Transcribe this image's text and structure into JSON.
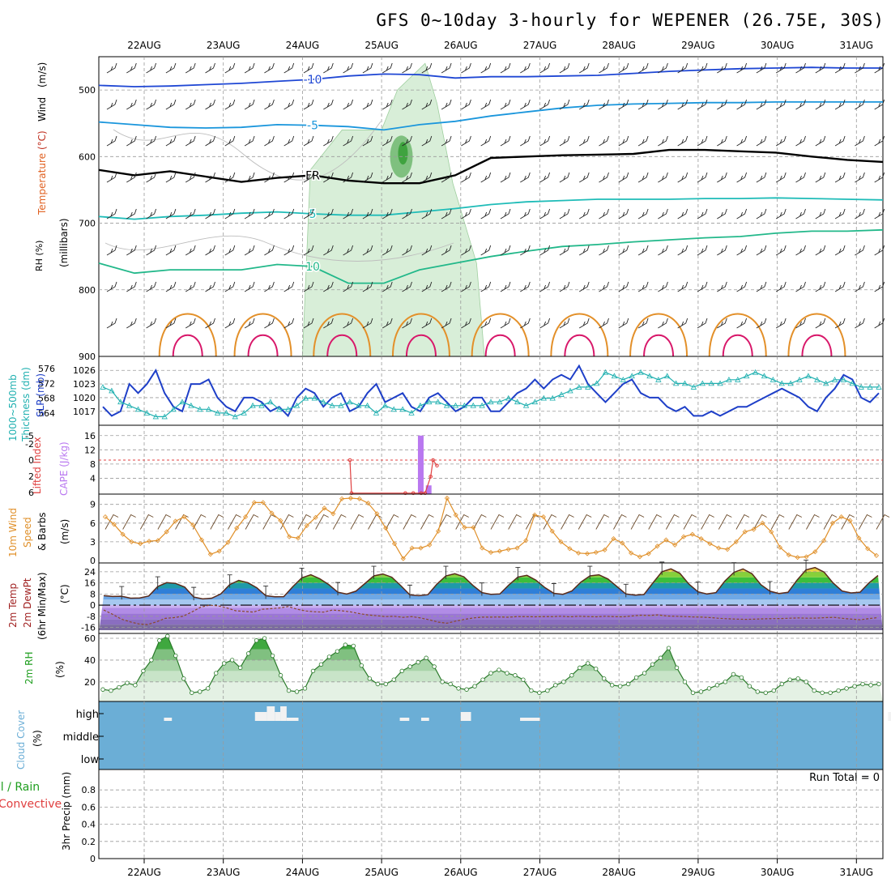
{
  "title": "GFS 0~10day 3-hourly for WEPENER (26.75E, 30S)",
  "dates": [
    "22AUG",
    "23AUG",
    "24AUG",
    "25AUG",
    "26AUG",
    "27AUG",
    "28AUG",
    "29AUG",
    "30AUG",
    "31AUG"
  ],
  "colors": {
    "grid": "#9a9a9a",
    "blue": "#1e3fc8",
    "teal": "#22aeb0",
    "orange": "#e08a1a",
    "red": "#e04040",
    "purple": "#b978f0",
    "green": "#1f9e1f",
    "cloud": "#6baed6",
    "rhgreen": "#7fc07f"
  },
  "chart_data": [
    {
      "id": "upper_air",
      "type": "contour",
      "ylabel_parts": [
        "RH (%)",
        "Temperature",
        "(°C)",
        "Wind",
        "(m/s)"
      ],
      "yunit": "(millibars)",
      "yticks": [
        500,
        600,
        700,
        800,
        900
      ],
      "ylim": [
        900,
        450
      ],
      "contours": [
        {
          "level": "-10",
          "color": "#1f47d4",
          "values": [
            493,
            495,
            494,
            492,
            490,
            487,
            484,
            479,
            476,
            477,
            482,
            480,
            480,
            479,
            478,
            475,
            472,
            470,
            468,
            467,
            466,
            467,
            467
          ]
        },
        {
          "level": "-5",
          "color": "#1a96dc",
          "values": [
            548,
            552,
            556,
            557,
            556,
            552,
            553,
            555,
            560,
            552,
            547,
            539,
            533,
            527,
            523,
            521,
            520,
            519,
            519,
            518,
            518,
            518,
            518
          ]
        },
        {
          "level": "FR",
          "color": "#000000",
          "values": [
            620,
            628,
            622,
            630,
            638,
            632,
            628,
            636,
            640,
            640,
            628,
            602,
            600,
            598,
            597,
            596,
            590,
            590,
            592,
            594,
            600,
            605,
            608
          ]
        },
        {
          "level": "5",
          "color": "#1fbcb8",
          "values": [
            690,
            694,
            690,
            688,
            685,
            683,
            686,
            688,
            688,
            683,
            678,
            672,
            668,
            666,
            664,
            664,
            664,
            663,
            663,
            662,
            663,
            664,
            665
          ]
        },
        {
          "level": "10",
          "color": "#22b88a",
          "values": [
            760,
            775,
            770,
            770,
            770,
            762,
            765,
            790,
            790,
            770,
            760,
            750,
            742,
            735,
            732,
            728,
            725,
            722,
            720,
            715,
            712,
            712,
            710
          ]
        }
      ],
      "contour_labels": [
        "-10",
        "-5",
        "FR",
        "5",
        "10"
      ]
    },
    {
      "id": "thickness_slp",
      "type": "line",
      "ylabel_parts": [
        "1000~500mb",
        "Thickness (dm)",
        "SLP (mb)"
      ],
      "left_ticks": [
        "576",
        "572",
        "568",
        "564"
      ],
      "left_range": [
        562,
        578
      ],
      "right_ticks": [
        "1026",
        "1023",
        "1020",
        "1017"
      ],
      "right_range": [
        1015,
        1028
      ],
      "series": [
        {
          "name": "SLP (mb)",
          "color": "#1e3fc8",
          "values": [
            1018,
            1016,
            1017,
            1023,
            1021,
            1023,
            1026,
            1021,
            1018,
            1017,
            1023,
            1023,
            1024,
            1020,
            1018,
            1017,
            1020,
            1020,
            1019,
            1017,
            1018,
            1016,
            1020,
            1022,
            1021,
            1018,
            1020,
            1021,
            1017,
            1018,
            1021,
            1023,
            1019,
            1020,
            1021,
            1018,
            1017,
            1020,
            1021,
            1019,
            1017,
            1018,
            1020,
            1020,
            1017,
            1017,
            1019,
            1021,
            1022,
            1024,
            1022,
            1024,
            1025,
            1024,
            1027,
            1023,
            1021,
            1019,
            1021,
            1023,
            1024,
            1021,
            1020,
            1020,
            1018,
            1017,
            1018,
            1016,
            1016,
            1017,
            1016,
            1017,
            1018,
            1018,
            1019,
            1020,
            1021,
            1022,
            1021,
            1020,
            1018,
            1017,
            1020,
            1022,
            1025,
            1024,
            1020,
            1019,
            1021
          ]
        },
        {
          "name": "1000~500mb Thickness (dm)",
          "color": "#20b0b0",
          "values": [
            571,
            570,
            567,
            566,
            565,
            564,
            563,
            563,
            565,
            567,
            566,
            565,
            565,
            564,
            564,
            563,
            564,
            566,
            566,
            567,
            565,
            565,
            566,
            568,
            568,
            567,
            566,
            566,
            567,
            566,
            566,
            564,
            566,
            565,
            565,
            564,
            566,
            567,
            567,
            566,
            566,
            566,
            566,
            566,
            567,
            567,
            568,
            567,
            566,
            567,
            568,
            568,
            569,
            570,
            571,
            571,
            572,
            575,
            574,
            573,
            574,
            575,
            574,
            573,
            574,
            572,
            572,
            571,
            572,
            572,
            572,
            573,
            573,
            574,
            575,
            574,
            573,
            572,
            572,
            573,
            574,
            573,
            572,
            573,
            573,
            572,
            571,
            571,
            571
          ]
        }
      ]
    },
    {
      "id": "cape_li",
      "type": "bar",
      "ylabel_parts": [
        "Lifted Index",
        "CAPE (J/kg)"
      ],
      "li_ticks": [
        "-5",
        "-2",
        "0",
        "2",
        "6"
      ],
      "cape_ticks": [
        "16",
        "12",
        "8",
        "4"
      ],
      "cape_range": [
        0,
        18
      ],
      "cape_values": [
        0,
        0,
        0,
        0,
        0,
        0,
        0,
        0,
        0,
        0,
        0,
        0,
        0,
        0,
        0,
        0,
        0,
        0,
        0,
        0,
        0,
        0,
        0,
        0,
        0,
        0,
        0,
        0,
        0,
        0,
        0,
        0,
        0,
        0,
        0,
        0,
        0,
        0,
        0,
        0,
        0,
        0,
        0,
        0,
        0,
        0,
        0,
        0,
        0,
        0,
        0,
        0,
        0,
        0,
        0,
        0,
        0,
        0,
        0,
        0,
        0,
        0,
        0,
        0,
        0,
        0,
        0,
        0,
        0,
        0,
        0,
        0,
        0,
        0,
        0,
        0,
        0,
        0,
        0,
        0,
        0,
        0,
        0,
        0,
        0,
        0,
        0,
        0,
        0,
        0,
        0,
        0,
        0,
        0,
        0,
        0,
        0,
        0,
        0,
        0
      ],
      "cape_peaks": [
        {
          "time": 3.5,
          "value": 16
        },
        {
          "time": 3.6,
          "value": 2
        }
      ],
      "li_line": {
        "color": "#e04040",
        "values": [
          0,
          6,
          6,
          6,
          6,
          6,
          3,
          0,
          1
        ]
      },
      "li_line_times": [
        2.6,
        2.62,
        3.3,
        3.4,
        3.5,
        3.55,
        3.62,
        3.65,
        3.7
      ]
    },
    {
      "id": "wind10m",
      "type": "line",
      "ylabel_parts": [
        "10m Wind",
        "Speed",
        "& Barbs",
        "(m/s)"
      ],
      "yticks": [
        "9",
        "6",
        "3",
        "0"
      ],
      "ylim": [
        0,
        10
      ],
      "series": [
        {
          "name": "10m Wind Speed (m/s)",
          "color": "#e0902a",
          "values": [
            7.0,
            5.8,
            4.2,
            3.0,
            2.7,
            3.1,
            3.2,
            4.6,
            6.3,
            7.0,
            5.7,
            3.3,
            1.0,
            1.5,
            2.9,
            5.2,
            7.0,
            9.3,
            9.3,
            7.6,
            6.4,
            3.8,
            3.6,
            5.6,
            6.9,
            8.4,
            7.5,
            9.9,
            10.0,
            9.9,
            9.2,
            7.5,
            5.2,
            2.7,
            0.3,
            2.0,
            2.0,
            2.5,
            4.7,
            10.0,
            7.3,
            5.3,
            5.3,
            2.0,
            1.3,
            1.5,
            1.8,
            2.0,
            3.2,
            7.3,
            7.0,
            4.7,
            3.0,
            1.9,
            1.2,
            1.1,
            1.3,
            1.7,
            3.5,
            2.8,
            1.2,
            0.6,
            1.1,
            2.3,
            3.3,
            2.5,
            3.8,
            4.2,
            3.5,
            2.7,
            2.0,
            1.8,
            3.0,
            4.6,
            5.0,
            6.0,
            4.6,
            2.1,
            0.9,
            0.5,
            0.6,
            1.4,
            3.2,
            6.0,
            7.0,
            6.4,
            3.6,
            1.9,
            0.8
          ]
        }
      ]
    },
    {
      "id": "temp2m",
      "type": "area",
      "ylabel_parts": [
        "2m Temp",
        "2m DewPt",
        "(6hr Min/Max)",
        "(°C)"
      ],
      "yticks": [
        "24",
        "16",
        "8",
        "0",
        "-8",
        "-16"
      ],
      "ylim": [
        -18,
        28
      ],
      "series": [
        {
          "name": "2m Temp",
          "color": "#5a2a1a",
          "values": [
            6.8,
            6.2,
            6.4,
            5.0,
            5.2,
            6.6,
            13.4,
            16.2,
            15.6,
            13.0,
            5.8,
            4.5,
            5.0,
            8.0,
            14.8,
            17.8,
            16.2,
            12.5,
            6.8,
            6.0,
            6.1,
            13.2,
            19.6,
            21.8,
            19.0,
            14.8,
            9.3,
            8.0,
            10.0,
            15.5,
            21.0,
            22.4,
            20.1,
            14.0,
            7.4,
            6.8,
            7.5,
            15.0,
            21.0,
            22.6,
            20.4,
            14.2,
            9.0,
            7.8,
            8.0,
            14.5,
            20.2,
            21.4,
            18.0,
            12.6,
            8.5,
            7.8,
            10.2,
            16.6,
            21.0,
            21.8,
            18.8,
            13.4,
            8.0,
            7.2,
            7.6,
            16.0,
            24.0,
            26.1,
            22.8,
            15.1,
            9.6,
            8.0,
            9.0,
            17.4,
            23.6,
            26.0,
            22.6,
            14.6,
            10.0,
            8.4,
            9.2,
            18.0,
            25.4,
            27.0,
            23.8,
            16.0,
            10.2,
            8.8,
            9.3,
            16.0,
            21.3
          ]
        },
        {
          "name": "2m DewPt",
          "color": "#8a4a2a",
          "values": [
            -3.5,
            -6.5,
            -10.0,
            -12.0,
            -13.5,
            -14.0,
            -12.0,
            -9.5,
            -9.0,
            -8.0,
            -5.0,
            -1.5,
            0.0,
            -0.5,
            -2.0,
            -4.0,
            -4.5,
            -5.0,
            -3.0,
            -2.5,
            -2.0,
            -1.0,
            -3.0,
            -4.2,
            -4.8,
            -5.0,
            -3.5,
            -4.0,
            -4.8,
            -6.0,
            -7.0,
            -7.6,
            -8.2,
            -8.0,
            -8.8,
            -8.2,
            -9.2,
            -10.5,
            -12.2,
            -13.0,
            -11.5,
            -10.2,
            -9.2,
            -8.6,
            -8.6,
            -8.5,
            -8.7,
            -8.2,
            -8.3,
            -8.4,
            -8.2,
            -8.3,
            -8.0,
            -8.4,
            -8.0,
            -8.2,
            -8.4,
            -8.0,
            -8.3,
            -8.4,
            -7.8,
            -7.2,
            -7.4,
            -7.0,
            -7.8,
            -8.0,
            -8.2,
            -8.5,
            -8.6,
            -9.0,
            -9.5,
            -9.8,
            -10.0,
            -10.2,
            -10.0,
            -9.8,
            -9.7,
            -9.6,
            -9.4,
            -9.2,
            -9.4,
            -9.3,
            -9.0,
            -8.8,
            -9.5,
            -10.0,
            -10.5,
            -9.6,
            -9.0
          ]
        }
      ]
    },
    {
      "id": "rh2m",
      "type": "area",
      "ylabel_parts": [
        "2m RH",
        "(%)"
      ],
      "yticks": [
        "60",
        "40",
        "20"
      ],
      "ylim": [
        5,
        63
      ],
      "series": [
        {
          "name": "2m RH (%)",
          "color": "#1f9e1f",
          "values": [
            13,
            12,
            15,
            19,
            17,
            30,
            40,
            58,
            62,
            44,
            23,
            10,
            11,
            14,
            28,
            37,
            40,
            33,
            46,
            58,
            60,
            44,
            26,
            12,
            11,
            14,
            30,
            36,
            43,
            48,
            54,
            53,
            35,
            23,
            18,
            18,
            22,
            30,
            34,
            38,
            42,
            34,
            20,
            18,
            14,
            13,
            16,
            22,
            28,
            31,
            28,
            26,
            22,
            12,
            10,
            12,
            17,
            20,
            26,
            33,
            37,
            32,
            23,
            17,
            16,
            18,
            24,
            28,
            36,
            42,
            51,
            33,
            20,
            10,
            11,
            14,
            17,
            20,
            27,
            24,
            16,
            11,
            10,
            12,
            18,
            22,
            23,
            20,
            12,
            10,
            10,
            12,
            14,
            16,
            18,
            17,
            18
          ]
        }
      ]
    },
    {
      "id": "cloud",
      "type": "heatmap",
      "ylabel_parts": [
        "Cloud Cover",
        "(%)"
      ],
      "layers": [
        "high",
        "middle",
        "low"
      ],
      "base_color": "#6baed6",
      "high_blocks": [
        {
          "t0": 0.8,
          "t1": 0.9,
          "level": 1
        },
        {
          "t0": 1.95,
          "t1": 2.1,
          "level": 2
        },
        {
          "t0": 2.1,
          "t1": 2.2,
          "level": 3
        },
        {
          "t0": 2.2,
          "t1": 2.27,
          "level": 2
        },
        {
          "t0": 2.27,
          "t1": 2.35,
          "level": 3
        },
        {
          "t0": 2.35,
          "t1": 2.5,
          "level": 1
        },
        {
          "t0": 3.78,
          "t1": 3.9,
          "level": 1
        },
        {
          "t0": 4.05,
          "t1": 4.15,
          "level": 1
        },
        {
          "t0": 4.55,
          "t1": 4.68,
          "level": 2
        },
        {
          "t0": 5.3,
          "t1": 5.55,
          "level": 1
        },
        {
          "t0": 9.95,
          "t1": 10.05,
          "level": 2
        },
        {
          "t0": 10.05,
          "t1": 10.2,
          "level": 3
        },
        {
          "t0": 10.2,
          "t1": 10.4,
          "level": 2
        }
      ]
    },
    {
      "id": "precip",
      "type": "bar",
      "ylabel_parts": [
        "Total / Rain",
        "Convective",
        "3hr Precip (mm)"
      ],
      "yticks": [
        "0.8",
        "0.6",
        "0.4",
        "0.2",
        "0"
      ],
      "ylim": [
        0,
        1
      ],
      "run_total": "Run Total = 0",
      "values": []
    }
  ]
}
